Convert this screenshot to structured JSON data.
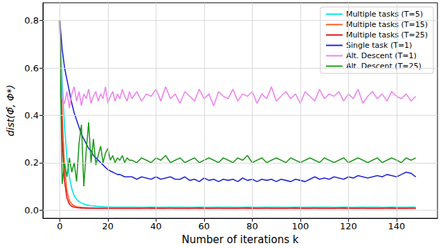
{
  "chart_data": {
    "type": "line",
    "x_label": "Number of iterations k",
    "y_label": "dist(Φ̂, Φ*)",
    "xlim": [
      -7,
      157
    ],
    "ylim": [
      -0.035,
      0.875
    ],
    "xticks": [
      0,
      20,
      40,
      60,
      80,
      100,
      120,
      140
    ],
    "yticks": [
      {
        "value": 0,
        "label": "0.0"
      },
      {
        "value": 0.2,
        "label": "0.2"
      },
      {
        "value": 0.4,
        "label": "0.4"
      },
      {
        "value": 0.6,
        "label": "0.6"
      },
      {
        "value": 0.8,
        "label": "0.8"
      }
    ],
    "grid": true,
    "legend": "upper right",
    "x": [
      0,
      1,
      2,
      3,
      4,
      5,
      6,
      7,
      8,
      9,
      10,
      11,
      12,
      13,
      14,
      15,
      16,
      17,
      18,
      19,
      20,
      21,
      22,
      23,
      24,
      25,
      26,
      27,
      28,
      29,
      30,
      32,
      34,
      36,
      38,
      40,
      42,
      44,
      46,
      48,
      50,
      52,
      54,
      56,
      58,
      60,
      62,
      64,
      66,
      68,
      70,
      72,
      74,
      76,
      78,
      80,
      82,
      84,
      86,
      88,
      90,
      92,
      94,
      96,
      98,
      100,
      102,
      104,
      106,
      108,
      110,
      112,
      114,
      116,
      118,
      120,
      122,
      124,
      126,
      128,
      130,
      132,
      134,
      136,
      138,
      140,
      142,
      144,
      146,
      148
    ],
    "series": [
      {
        "name": "Multiple tasks (T=5)",
        "color": "#00e5e5",
        "values": [
          0.8,
          0.55,
          0.35,
          0.22,
          0.14,
          0.09,
          0.06,
          0.045,
          0.035,
          0.03,
          0.025,
          0.022,
          0.02,
          0.018,
          0.017,
          0.016,
          0.015,
          0.014,
          0.014,
          0.013,
          0.013,
          0.013,
          0.012,
          0.012,
          0.012,
          0.012,
          0.012,
          0.012,
          0.012,
          0.012,
          0.012,
          0.012,
          0.011,
          0.012,
          0.012,
          0.012,
          0.011,
          0.012,
          0.012,
          0.012,
          0.012,
          0.012,
          0.011,
          0.012,
          0.012,
          0.012,
          0.011,
          0.012,
          0.012,
          0.012,
          0.012,
          0.012,
          0.011,
          0.012,
          0.012,
          0.012,
          0.011,
          0.012,
          0.012,
          0.012,
          0.012,
          0.012,
          0.011,
          0.012,
          0.012,
          0.012,
          0.011,
          0.012,
          0.012,
          0.012,
          0.012,
          0.012,
          0.011,
          0.012,
          0.012,
          0.012,
          0.011,
          0.012,
          0.012,
          0.012,
          0.012,
          0.012,
          0.011,
          0.012,
          0.012,
          0.012,
          0.011,
          0.012,
          0.012,
          0.012
        ]
      },
      {
        "name": "Multiple tasks (T=15)",
        "color": "#ff5a1f",
        "values": [
          0.8,
          0.4,
          0.18,
          0.08,
          0.04,
          0.025,
          0.018,
          0.014,
          0.012,
          0.011,
          0.01,
          0.01,
          0.009,
          0.009,
          0.009,
          0.008,
          0.008,
          0.008,
          0.008,
          0.008,
          0.008,
          0.008,
          0.008,
          0.008,
          0.008,
          0.008,
          0.008,
          0.008,
          0.008,
          0.008,
          0.008,
          0.008,
          0.008,
          0.009,
          0.008,
          0.008,
          0.008,
          0.008,
          0.009,
          0.008,
          0.008,
          0.008,
          0.008,
          0.009,
          0.008,
          0.008,
          0.008,
          0.008,
          0.009,
          0.008,
          0.008,
          0.008,
          0.008,
          0.009,
          0.008,
          0.008,
          0.008,
          0.008,
          0.009,
          0.008,
          0.008,
          0.008,
          0.008,
          0.009,
          0.008,
          0.008,
          0.008,
          0.008,
          0.009,
          0.008,
          0.008,
          0.008,
          0.008,
          0.009,
          0.008,
          0.008,
          0.008,
          0.008,
          0.009,
          0.008,
          0.008,
          0.008,
          0.008,
          0.009,
          0.008,
          0.008,
          0.008,
          0.008,
          0.009,
          0.008
        ]
      },
      {
        "name": "Multiple tasks (T=25)",
        "color": "#e0101a",
        "values": [
          0.8,
          0.3,
          0.12,
          0.05,
          0.025,
          0.015,
          0.012,
          0.01,
          0.009,
          0.008,
          0.008,
          0.007,
          0.007,
          0.007,
          0.007,
          0.007,
          0.007,
          0.007,
          0.007,
          0.007,
          0.007,
          0.007,
          0.007,
          0.007,
          0.007,
          0.007,
          0.007,
          0.007,
          0.007,
          0.007,
          0.007,
          0.007,
          0.007,
          0.007,
          0.008,
          0.007,
          0.007,
          0.007,
          0.007,
          0.007,
          0.007,
          0.007,
          0.007,
          0.007,
          0.008,
          0.007,
          0.007,
          0.007,
          0.007,
          0.007,
          0.007,
          0.007,
          0.007,
          0.007,
          0.008,
          0.007,
          0.007,
          0.007,
          0.007,
          0.007,
          0.007,
          0.007,
          0.007,
          0.007,
          0.008,
          0.007,
          0.007,
          0.007,
          0.007,
          0.007,
          0.007,
          0.007,
          0.007,
          0.007,
          0.008,
          0.007,
          0.007,
          0.007,
          0.007,
          0.007,
          0.007,
          0.007,
          0.007,
          0.007,
          0.008,
          0.007,
          0.007,
          0.007,
          0.007,
          0.007
        ]
      },
      {
        "name": "Single task (T=1)",
        "color": "#1f24d6",
        "values": [
          0.8,
          0.68,
          0.6,
          0.55,
          0.5,
          0.45,
          0.41,
          0.38,
          0.35,
          0.32,
          0.3,
          0.28,
          0.26,
          0.25,
          0.23,
          0.22,
          0.21,
          0.2,
          0.19,
          0.18,
          0.17,
          0.165,
          0.16,
          0.155,
          0.15,
          0.15,
          0.145,
          0.14,
          0.14,
          0.14,
          0.14,
          0.13,
          0.14,
          0.135,
          0.13,
          0.14,
          0.13,
          0.135,
          0.14,
          0.13,
          0.13,
          0.14,
          0.125,
          0.13,
          0.12,
          0.135,
          0.125,
          0.13,
          0.12,
          0.13,
          0.125,
          0.13,
          0.12,
          0.135,
          0.125,
          0.13,
          0.12,
          0.13,
          0.125,
          0.13,
          0.12,
          0.13,
          0.125,
          0.12,
          0.13,
          0.125,
          0.12,
          0.13,
          0.14,
          0.13,
          0.135,
          0.13,
          0.14,
          0.135,
          0.13,
          0.14,
          0.135,
          0.145,
          0.14,
          0.135,
          0.14,
          0.145,
          0.14,
          0.15,
          0.145,
          0.14,
          0.15,
          0.16,
          0.155,
          0.14
        ]
      },
      {
        "name": "Alt. Descent (T=1)",
        "color": "#ee82ee",
        "values": [
          0.8,
          0.47,
          0.45,
          0.5,
          0.43,
          0.49,
          0.52,
          0.46,
          0.5,
          0.44,
          0.49,
          0.47,
          0.51,
          0.45,
          0.48,
          0.5,
          0.46,
          0.49,
          0.47,
          0.52,
          0.45,
          0.48,
          0.5,
          0.46,
          0.49,
          0.47,
          0.51,
          0.48,
          0.46,
          0.5,
          0.47,
          0.5,
          0.46,
          0.49,
          0.48,
          0.51,
          0.46,
          0.52,
          0.47,
          0.49,
          0.45,
          0.5,
          0.48,
          0.46,
          0.51,
          0.47,
          0.49,
          0.44,
          0.5,
          0.48,
          0.47,
          0.51,
          0.46,
          0.49,
          0.48,
          0.5,
          0.45,
          0.49,
          0.47,
          0.52,
          0.46,
          0.48,
          0.5,
          0.47,
          0.49,
          0.45,
          0.5,
          0.48,
          0.46,
          0.51,
          0.47,
          0.49,
          0.48,
          0.5,
          0.46,
          0.49,
          0.47,
          0.51,
          0.45,
          0.48,
          0.5,
          0.47,
          0.49,
          0.46,
          0.5,
          0.48,
          0.47,
          0.49,
          0.46,
          0.48
        ]
      },
      {
        "name": "Alt. Descent (T=25)",
        "color": "#1e9a1e",
        "values": [
          0.8,
          0.11,
          0.2,
          0.14,
          0.22,
          0.16,
          0.2,
          0.12,
          0.28,
          0.36,
          0.1,
          0.25,
          0.37,
          0.2,
          0.3,
          0.19,
          0.23,
          0.27,
          0.2,
          0.24,
          0.26,
          0.21,
          0.23,
          0.2,
          0.22,
          0.21,
          0.23,
          0.2,
          0.22,
          0.21,
          0.21,
          0.2,
          0.22,
          0.21,
          0.2,
          0.22,
          0.21,
          0.23,
          0.2,
          0.21,
          0.22,
          0.2,
          0.21,
          0.22,
          0.2,
          0.21,
          0.22,
          0.21,
          0.2,
          0.22,
          0.21,
          0.2,
          0.22,
          0.21,
          0.23,
          0.2,
          0.21,
          0.22,
          0.2,
          0.21,
          0.22,
          0.21,
          0.2,
          0.22,
          0.21,
          0.2,
          0.21,
          0.22,
          0.21,
          0.2,
          0.22,
          0.21,
          0.2,
          0.21,
          0.22,
          0.2,
          0.21,
          0.22,
          0.21,
          0.2,
          0.21,
          0.22,
          0.2,
          0.21,
          0.22,
          0.21,
          0.2,
          0.22,
          0.21,
          0.22
        ]
      }
    ]
  }
}
